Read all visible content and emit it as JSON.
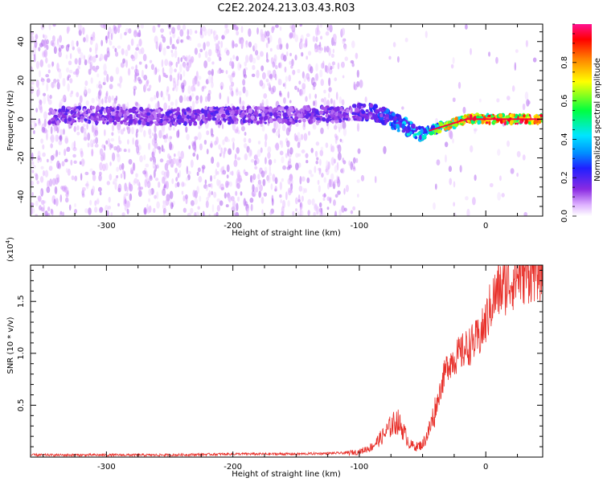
{
  "title": "C2E2.2024.213.03.43.R03",
  "chart_data": [
    {
      "type": "heatmap",
      "name": "spectrogram",
      "xlabel": "Height of straight line (km)",
      "ylabel": "Frequency (Hz)",
      "xlim": [
        -360,
        45
      ],
      "ylim": [
        -50,
        49
      ],
      "xticks": [
        -300,
        -200,
        -100,
        0
      ],
      "xtick_labels": [
        "-300",
        "-200",
        "-100",
        "0"
      ],
      "yticks": [
        -40,
        -20,
        0,
        20,
        40
      ],
      "ytick_labels": [
        "-40",
        "-20",
        "0",
        "20",
        "40"
      ],
      "colorbar": {
        "label": "Normalized spectral amplitude",
        "range": [
          0,
          1
        ],
        "ticks": [
          0.0,
          0.2,
          0.4,
          0.6,
          0.8
        ],
        "tick_labels": [
          "0.0",
          "0.2",
          "0.4",
          "0.6",
          "0.8"
        ],
        "colormap": [
          "#ffffff",
          "#e0b0ff",
          "#8a2be2",
          "#1e1eff",
          "#00e5ff",
          "#00ff40",
          "#ffff00",
          "#ff8000",
          "#ff0000",
          "#ff1090"
        ]
      },
      "carrier_track": {
        "height_km": [
          -345,
          -300,
          -250,
          -200,
          -150,
          -110,
          -90,
          -75,
          -60,
          -50,
          -45,
          -35,
          -25,
          -15,
          0,
          15,
          45
        ],
        "frequency_hz": [
          2,
          2,
          1,
          2,
          2,
          3,
          4,
          0,
          -5,
          -8,
          -6,
          -4,
          -2,
          0,
          0,
          0,
          0
        ]
      },
      "grid": false
    },
    {
      "type": "line",
      "name": "snr",
      "xlabel": "Height of straight line (km)",
      "ylabel": "SNR (10 * v/v)",
      "multiplier_label": "(x10",
      "multiplier_exp": "4",
      "multiplier_close": ")",
      "xlim": [
        -360,
        45
      ],
      "ylim": [
        0,
        1.85
      ],
      "xticks": [
        -300,
        -200,
        -100,
        0
      ],
      "xtick_labels": [
        "-300",
        "-200",
        "-100",
        "0"
      ],
      "yticks": [
        0.5,
        1.0,
        1.5
      ],
      "ytick_labels": [
        "0.5",
        "1.0",
        "1.5"
      ],
      "color": "#e8302a",
      "series": [
        {
          "x": [
            -360,
            -300,
            -250,
            -200,
            -150,
            -110,
            -100,
            -90,
            -80,
            -75,
            -70,
            -65,
            -60,
            -55,
            -50,
            -45,
            -40,
            -35,
            -30,
            -25,
            -20,
            -15,
            -10,
            -5,
            0,
            5,
            10,
            15,
            20,
            25,
            30,
            35,
            40,
            45
          ],
          "y": [
            0.02,
            0.02,
            0.02,
            0.03,
            0.03,
            0.04,
            0.05,
            0.1,
            0.22,
            0.3,
            0.35,
            0.25,
            0.12,
            0.1,
            0.12,
            0.25,
            0.45,
            0.7,
            0.9,
            0.95,
            1.0,
            1.05,
            1.1,
            1.15,
            1.3,
            1.5,
            1.6,
            1.65,
            1.7,
            1.75,
            1.78,
            1.8,
            1.82,
            1.82
          ]
        }
      ],
      "grid": false
    }
  ]
}
